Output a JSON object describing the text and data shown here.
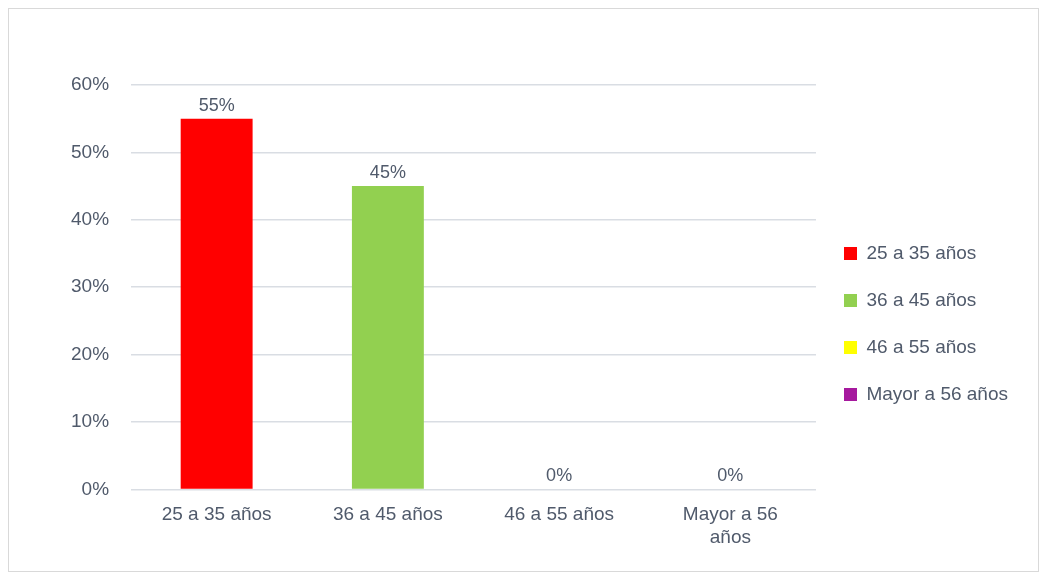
{
  "chart_data": {
    "type": "bar",
    "categories": [
      "25 a 35 años",
      "36 a 45 años",
      "46 a 55 años",
      "Mayor a 56 años"
    ],
    "series": [
      {
        "name": "25 a 35 años",
        "color": "#ff0000",
        "values": [
          55,
          null,
          null,
          null
        ],
        "value_labels": [
          "55%",
          null,
          null,
          null
        ]
      },
      {
        "name": "36 a 45 años",
        "color": "#92d050",
        "values": [
          null,
          45,
          null,
          null
        ],
        "value_labels": [
          null,
          "45%",
          null,
          null
        ]
      },
      {
        "name": "46 a 55 años",
        "color": "#ffff00",
        "values": [
          null,
          null,
          0,
          null
        ],
        "value_labels": [
          null,
          null,
          "0%",
          null
        ]
      },
      {
        "name": "Mayor a 56 años",
        "color": "#a6199e",
        "values": [
          null,
          null,
          null,
          0
        ],
        "value_labels": [
          null,
          null,
          null,
          "0%"
        ]
      }
    ],
    "ylim": [
      0,
      60
    ],
    "yticks": [
      {
        "value": 0,
        "label": "0%"
      },
      {
        "value": 10,
        "label": "10%"
      },
      {
        "value": 20,
        "label": "20%"
      },
      {
        "value": 30,
        "label": "30%"
      },
      {
        "value": 40,
        "label": "40%"
      },
      {
        "value": 50,
        "label": "50%"
      },
      {
        "value": 60,
        "label": "60%"
      }
    ],
    "grid": "y",
    "legend": "right"
  }
}
